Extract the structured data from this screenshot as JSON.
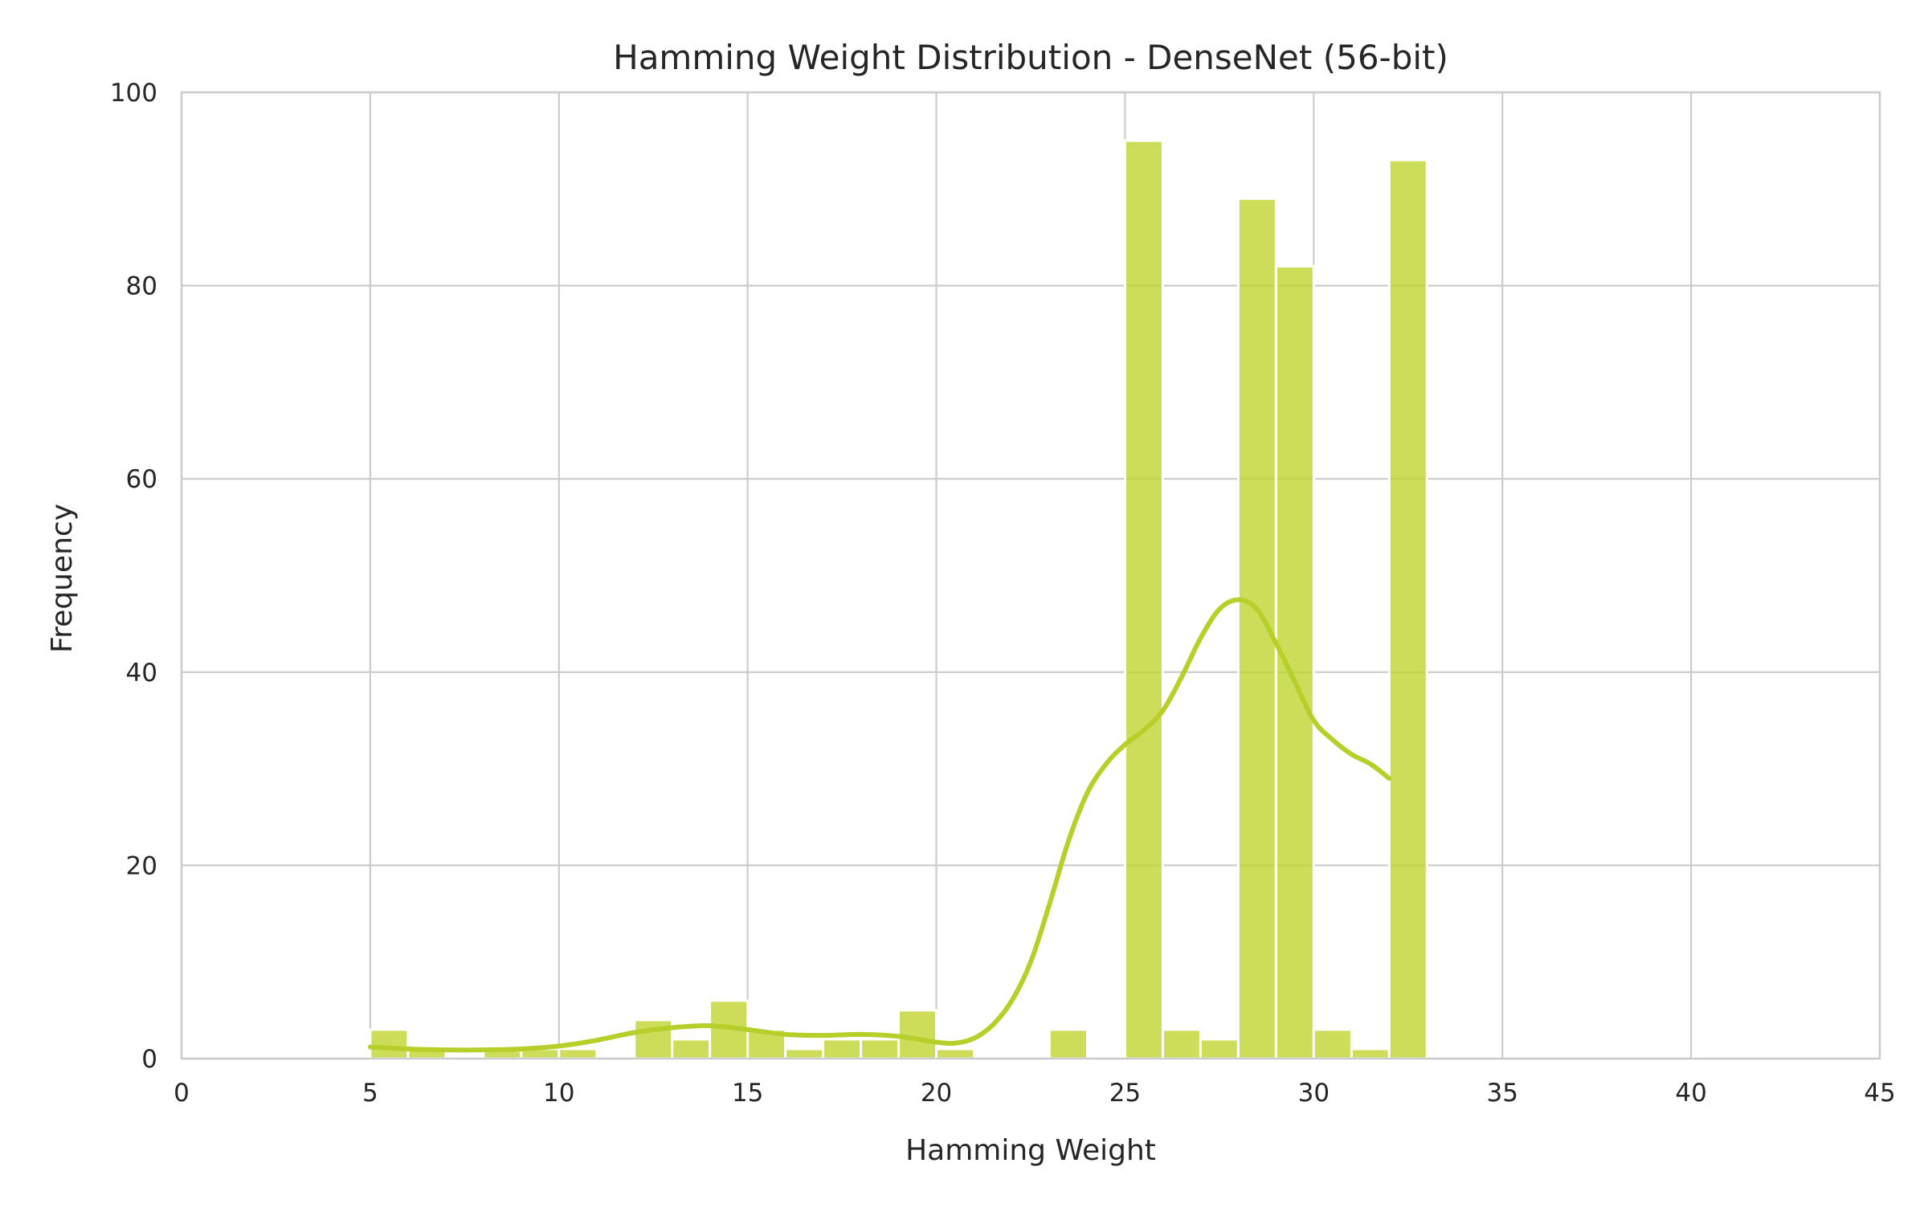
{
  "chart_data": {
    "type": "bar",
    "title": "Hamming Weight Distribution - DenseNet (56-bit)",
    "xlabel": "Hamming Weight",
    "ylabel": "Frequency",
    "xlim": [
      0,
      45
    ],
    "ylim": [
      0,
      100
    ],
    "xticks": [
      0,
      5,
      10,
      15,
      20,
      25,
      30,
      35,
      40,
      45
    ],
    "yticks": [
      0,
      20,
      40,
      60,
      80,
      100
    ],
    "grid": true,
    "bar_color": "#c0d330",
    "kde_color": "#b8cf2a",
    "bin_width": 1,
    "bins": [
      {
        "x": 5,
        "count": 3
      },
      {
        "x": 6,
        "count": 1
      },
      {
        "x": 7,
        "count": 0
      },
      {
        "x": 8,
        "count": 1
      },
      {
        "x": 9,
        "count": 1
      },
      {
        "x": 10,
        "count": 1
      },
      {
        "x": 11,
        "count": 0
      },
      {
        "x": 12,
        "count": 4
      },
      {
        "x": 13,
        "count": 2
      },
      {
        "x": 14,
        "count": 6
      },
      {
        "x": 15,
        "count": 3
      },
      {
        "x": 16,
        "count": 1
      },
      {
        "x": 17,
        "count": 2
      },
      {
        "x": 18,
        "count": 2
      },
      {
        "x": 19,
        "count": 5
      },
      {
        "x": 20,
        "count": 1
      },
      {
        "x": 21,
        "count": 0
      },
      {
        "x": 22,
        "count": 0
      },
      {
        "x": 23,
        "count": 3
      },
      {
        "x": 24,
        "count": 0
      },
      {
        "x": 25,
        "count": 95
      },
      {
        "x": 26,
        "count": 3
      },
      {
        "x": 27,
        "count": 2
      },
      {
        "x": 28,
        "count": 89
      },
      {
        "x": 29,
        "count": 82
      },
      {
        "x": 30,
        "count": 3
      },
      {
        "x": 31,
        "count": 1
      },
      {
        "x": 32,
        "count": 93
      }
    ],
    "kde": {
      "x": [
        5,
        6,
        7,
        8,
        9,
        10,
        11,
        12,
        13,
        14,
        15,
        16,
        17,
        18,
        19,
        20,
        20.5,
        21,
        21.5,
        22,
        22.5,
        23,
        23.5,
        24,
        24.5,
        25,
        25.5,
        26,
        26.5,
        27,
        27.5,
        28,
        28.5,
        29,
        29.5,
        30,
        30.5,
        31,
        31.5,
        32
      ],
      "y": [
        1.2,
        1.0,
        0.9,
        0.9,
        1.0,
        1.3,
        1.9,
        2.7,
        3.2,
        3.4,
        3.0,
        2.5,
        2.4,
        2.5,
        2.3,
        1.7,
        1.6,
        2.1,
        3.5,
        6.0,
        10.0,
        16.0,
        22.5,
        27.5,
        30.5,
        32.5,
        34.0,
        36.0,
        39.5,
        43.5,
        46.5,
        47.5,
        46.5,
        43.0,
        39.0,
        35.0,
        33.0,
        31.5,
        30.5,
        29.0
      ]
    }
  }
}
